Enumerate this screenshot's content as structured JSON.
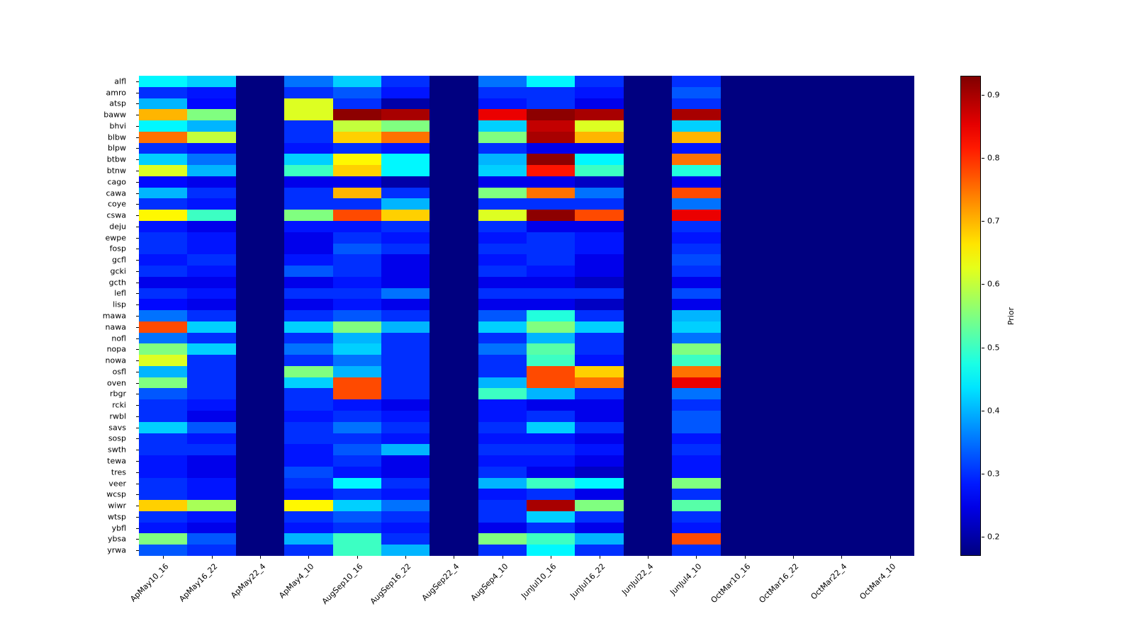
{
  "chart_data": {
    "type": "heatmap",
    "colormap": "jet",
    "vmin": 0.17,
    "vmax": 0.93,
    "colorbar_label": "Prior",
    "colorbar_ticks": [
      0.2,
      0.3,
      0.4,
      0.5,
      0.6,
      0.7,
      0.8,
      0.9
    ],
    "x_labels": [
      "ApMay10_16",
      "ApMay16_22",
      "ApMay22_4",
      "ApMay4_10",
      "AugSep10_16",
      "AugSep16_22",
      "AugSep22_4",
      "AugSep4_10",
      "JunJul10_16",
      "JunJul16_22",
      "JunJul22_4",
      "JunJul4_10",
      "OctMar10_16",
      "OctMar16_22",
      "OctMar22_4",
      "OctMar4_10"
    ],
    "y_labels": [
      "alfl",
      "amro",
      "atsp",
      "baww",
      "bhvi",
      "blbw",
      "blpw",
      "btbw",
      "btnw",
      "cago",
      "cawa",
      "coye",
      "cswa",
      "deju",
      "ewpe",
      "fosp",
      "gcfl",
      "gcki",
      "gcth",
      "lefl",
      "lisp",
      "mawa",
      "nawa",
      "nofl",
      "nopa",
      "nowa",
      "osfl",
      "oven",
      "rbgr",
      "rcki",
      "rwbl",
      "savs",
      "sosp",
      "swth",
      "tewa",
      "tres",
      "veer",
      "wcsp",
      "wiwr",
      "wtsp",
      "ybfl",
      "ybsa",
      "yrwa"
    ],
    "values": [
      [
        0.45,
        0.42,
        0.17,
        0.35,
        0.42,
        0.3,
        0.17,
        0.35,
        0.45,
        0.3,
        0.17,
        0.3,
        0.17,
        0.17,
        0.17,
        0.17
      ],
      [
        0.3,
        0.28,
        0.17,
        0.3,
        0.33,
        0.28,
        0.17,
        0.3,
        0.3,
        0.28,
        0.17,
        0.33,
        0.17,
        0.17,
        0.17,
        0.17
      ],
      [
        0.4,
        0.27,
        0.17,
        0.62,
        0.3,
        0.2,
        0.17,
        0.28,
        0.3,
        0.25,
        0.17,
        0.3,
        0.17,
        0.17,
        0.17,
        0.17
      ],
      [
        0.7,
        0.55,
        0.17,
        0.62,
        0.92,
        0.9,
        0.17,
        0.85,
        0.92,
        0.9,
        0.17,
        0.9,
        0.17,
        0.17,
        0.17,
        0.17
      ],
      [
        0.45,
        0.4,
        0.17,
        0.3,
        0.6,
        0.55,
        0.17,
        0.42,
        0.88,
        0.62,
        0.17,
        0.42,
        0.17,
        0.17,
        0.17,
        0.17
      ],
      [
        0.75,
        0.6,
        0.17,
        0.3,
        0.68,
        0.75,
        0.17,
        0.55,
        0.9,
        0.7,
        0.17,
        0.7,
        0.17,
        0.17,
        0.17,
        0.17
      ],
      [
        0.3,
        0.28,
        0.17,
        0.28,
        0.3,
        0.28,
        0.17,
        0.3,
        0.25,
        0.25,
        0.17,
        0.28,
        0.17,
        0.17,
        0.17,
        0.17
      ],
      [
        0.42,
        0.35,
        0.17,
        0.42,
        0.65,
        0.45,
        0.17,
        0.4,
        0.92,
        0.45,
        0.17,
        0.75,
        0.17,
        0.17,
        0.17,
        0.17
      ],
      [
        0.62,
        0.4,
        0.17,
        0.5,
        0.68,
        0.45,
        0.17,
        0.42,
        0.82,
        0.5,
        0.17,
        0.48,
        0.17,
        0.17,
        0.17,
        0.17
      ],
      [
        0.27,
        0.25,
        0.17,
        0.25,
        0.25,
        0.2,
        0.17,
        0.25,
        0.25,
        0.22,
        0.17,
        0.25,
        0.17,
        0.17,
        0.17,
        0.17
      ],
      [
        0.4,
        0.3,
        0.17,
        0.3,
        0.7,
        0.3,
        0.17,
        0.55,
        0.75,
        0.35,
        0.17,
        0.78,
        0.17,
        0.17,
        0.17,
        0.17
      ],
      [
        0.3,
        0.28,
        0.17,
        0.3,
        0.3,
        0.4,
        0.17,
        0.3,
        0.3,
        0.3,
        0.17,
        0.35,
        0.17,
        0.17,
        0.17,
        0.17
      ],
      [
        0.65,
        0.5,
        0.17,
        0.55,
        0.78,
        0.68,
        0.17,
        0.62,
        0.92,
        0.78,
        0.17,
        0.85,
        0.17,
        0.17,
        0.17,
        0.17
      ],
      [
        0.28,
        0.25,
        0.17,
        0.28,
        0.28,
        0.3,
        0.17,
        0.3,
        0.25,
        0.25,
        0.17,
        0.3,
        0.17,
        0.17,
        0.17,
        0.17
      ],
      [
        0.3,
        0.28,
        0.17,
        0.25,
        0.3,
        0.28,
        0.17,
        0.28,
        0.3,
        0.28,
        0.17,
        0.28,
        0.17,
        0.17,
        0.17,
        0.17
      ],
      [
        0.3,
        0.28,
        0.17,
        0.25,
        0.33,
        0.3,
        0.17,
        0.3,
        0.3,
        0.28,
        0.17,
        0.3,
        0.17,
        0.17,
        0.17,
        0.17
      ],
      [
        0.28,
        0.3,
        0.17,
        0.28,
        0.3,
        0.25,
        0.17,
        0.28,
        0.3,
        0.25,
        0.17,
        0.32,
        0.17,
        0.17,
        0.17,
        0.17
      ],
      [
        0.3,
        0.28,
        0.17,
        0.33,
        0.3,
        0.25,
        0.17,
        0.3,
        0.28,
        0.25,
        0.17,
        0.3,
        0.17,
        0.17,
        0.17,
        0.17
      ],
      [
        0.25,
        0.25,
        0.17,
        0.25,
        0.28,
        0.25,
        0.17,
        0.25,
        0.25,
        0.22,
        0.17,
        0.25,
        0.17,
        0.17,
        0.17,
        0.17
      ],
      [
        0.3,
        0.28,
        0.17,
        0.3,
        0.3,
        0.35,
        0.17,
        0.3,
        0.3,
        0.3,
        0.17,
        0.32,
        0.17,
        0.17,
        0.17,
        0.17
      ],
      [
        0.27,
        0.25,
        0.17,
        0.25,
        0.28,
        0.25,
        0.17,
        0.25,
        0.25,
        0.22,
        0.17,
        0.25,
        0.17,
        0.17,
        0.17,
        0.17
      ],
      [
        0.35,
        0.3,
        0.17,
        0.3,
        0.33,
        0.3,
        0.17,
        0.33,
        0.48,
        0.3,
        0.17,
        0.4,
        0.17,
        0.17,
        0.17,
        0.17
      ],
      [
        0.78,
        0.42,
        0.17,
        0.42,
        0.55,
        0.4,
        0.17,
        0.42,
        0.55,
        0.42,
        0.17,
        0.42,
        0.17,
        0.17,
        0.17,
        0.17
      ],
      [
        0.35,
        0.3,
        0.17,
        0.3,
        0.4,
        0.3,
        0.17,
        0.3,
        0.4,
        0.3,
        0.17,
        0.35,
        0.17,
        0.17,
        0.17,
        0.17
      ],
      [
        0.55,
        0.42,
        0.17,
        0.35,
        0.42,
        0.3,
        0.17,
        0.35,
        0.52,
        0.3,
        0.17,
        0.55,
        0.17,
        0.17,
        0.17,
        0.17
      ],
      [
        0.62,
        0.3,
        0.17,
        0.3,
        0.35,
        0.3,
        0.17,
        0.3,
        0.5,
        0.28,
        0.17,
        0.5,
        0.17,
        0.17,
        0.17,
        0.17
      ],
      [
        0.4,
        0.3,
        0.17,
        0.55,
        0.4,
        0.3,
        0.17,
        0.3,
        0.78,
        0.68,
        0.17,
        0.75,
        0.17,
        0.17,
        0.17,
        0.17
      ],
      [
        0.55,
        0.3,
        0.17,
        0.42,
        0.78,
        0.3,
        0.17,
        0.4,
        0.78,
        0.75,
        0.17,
        0.85,
        0.17,
        0.17,
        0.17,
        0.17
      ],
      [
        0.33,
        0.3,
        0.17,
        0.3,
        0.78,
        0.3,
        0.17,
        0.5,
        0.4,
        0.3,
        0.17,
        0.35,
        0.17,
        0.17,
        0.17,
        0.17
      ],
      [
        0.3,
        0.28,
        0.17,
        0.3,
        0.28,
        0.25,
        0.17,
        0.28,
        0.25,
        0.25,
        0.17,
        0.3,
        0.17,
        0.17,
        0.17,
        0.17
      ],
      [
        0.3,
        0.25,
        0.17,
        0.28,
        0.3,
        0.28,
        0.17,
        0.28,
        0.3,
        0.25,
        0.17,
        0.33,
        0.17,
        0.17,
        0.17,
        0.17
      ],
      [
        0.42,
        0.33,
        0.17,
        0.3,
        0.35,
        0.3,
        0.17,
        0.3,
        0.42,
        0.3,
        0.17,
        0.33,
        0.17,
        0.17,
        0.17,
        0.17
      ],
      [
        0.3,
        0.28,
        0.17,
        0.3,
        0.3,
        0.28,
        0.17,
        0.28,
        0.28,
        0.25,
        0.17,
        0.28,
        0.17,
        0.17,
        0.17,
        0.17
      ],
      [
        0.3,
        0.3,
        0.17,
        0.28,
        0.33,
        0.4,
        0.17,
        0.3,
        0.3,
        0.28,
        0.17,
        0.3,
        0.17,
        0.17,
        0.17,
        0.17
      ],
      [
        0.28,
        0.25,
        0.17,
        0.28,
        0.3,
        0.25,
        0.17,
        0.28,
        0.28,
        0.25,
        0.17,
        0.28,
        0.17,
        0.17,
        0.17,
        0.17
      ],
      [
        0.28,
        0.25,
        0.17,
        0.32,
        0.28,
        0.25,
        0.17,
        0.3,
        0.25,
        0.22,
        0.17,
        0.28,
        0.17,
        0.17,
        0.17,
        0.17
      ],
      [
        0.3,
        0.28,
        0.17,
        0.3,
        0.45,
        0.3,
        0.17,
        0.4,
        0.5,
        0.45,
        0.17,
        0.55,
        0.17,
        0.17,
        0.17,
        0.17
      ],
      [
        0.3,
        0.28,
        0.17,
        0.28,
        0.3,
        0.28,
        0.17,
        0.28,
        0.3,
        0.25,
        0.17,
        0.3,
        0.17,
        0.17,
        0.17,
        0.17
      ],
      [
        0.68,
        0.58,
        0.17,
        0.65,
        0.42,
        0.35,
        0.17,
        0.3,
        0.9,
        0.55,
        0.17,
        0.52,
        0.17,
        0.17,
        0.17,
        0.17
      ],
      [
        0.3,
        0.28,
        0.17,
        0.3,
        0.33,
        0.3,
        0.17,
        0.3,
        0.42,
        0.3,
        0.17,
        0.3,
        0.17,
        0.17,
        0.17,
        0.17
      ],
      [
        0.28,
        0.25,
        0.17,
        0.28,
        0.3,
        0.28,
        0.17,
        0.25,
        0.3,
        0.25,
        0.17,
        0.28,
        0.17,
        0.17,
        0.17,
        0.17
      ],
      [
        0.55,
        0.33,
        0.17,
        0.4,
        0.5,
        0.3,
        0.17,
        0.55,
        0.5,
        0.4,
        0.17,
        0.78,
        0.17,
        0.17,
        0.17,
        0.17
      ],
      [
        0.33,
        0.3,
        0.17,
        0.3,
        0.5,
        0.4,
        0.17,
        0.3,
        0.45,
        0.3,
        0.17,
        0.3,
        0.17,
        0.17,
        0.17,
        0.17
      ]
    ]
  }
}
